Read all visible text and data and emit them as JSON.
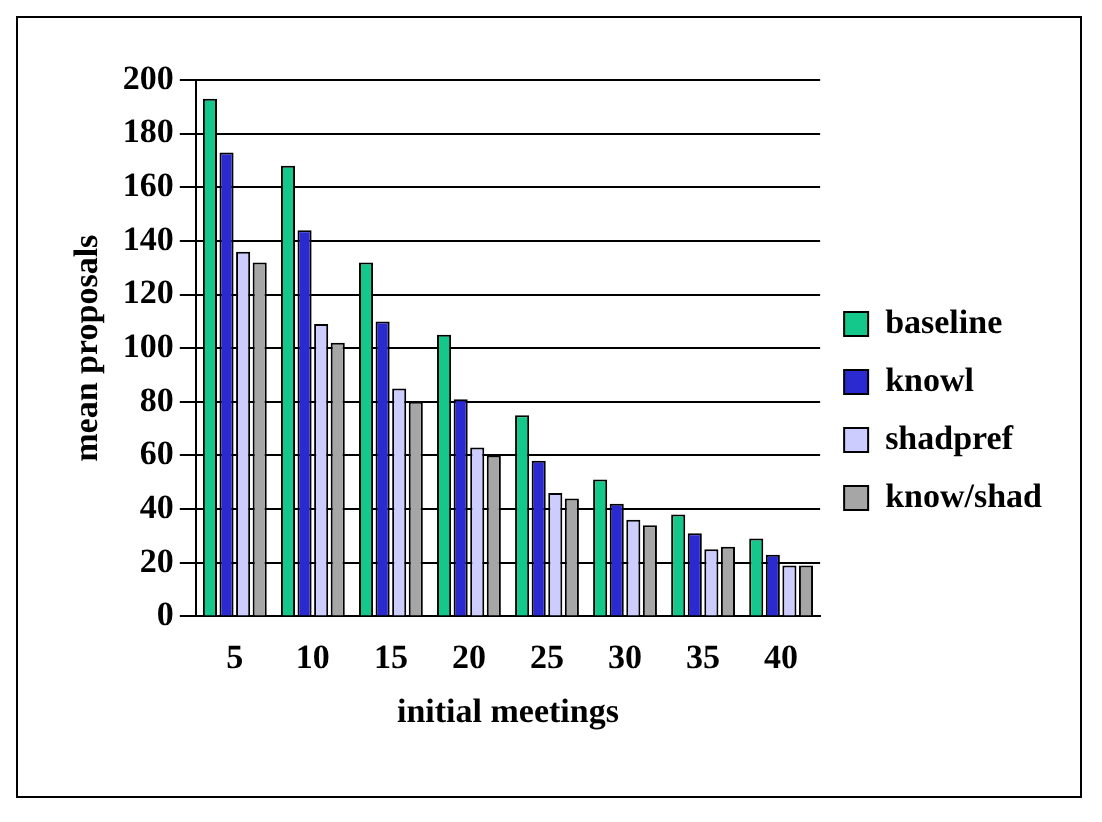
{
  "chart_data": {
    "type": "bar",
    "xlabel": "initial meetings",
    "ylabel": "mean proposals",
    "categories": [
      "5",
      "10",
      "15",
      "20",
      "25",
      "30",
      "35",
      "40"
    ],
    "series": [
      {
        "name": "baseline",
        "color": "#14c88c",
        "values": [
          193,
          168,
          132,
          105,
          75,
          51,
          38,
          29
        ]
      },
      {
        "name": "knowl",
        "color": "#2a2ad0",
        "values": [
          173,
          144,
          110,
          81,
          58,
          42,
          31,
          23
        ]
      },
      {
        "name": "shadpref",
        "color": "#ccccff",
        "values": [
          136,
          109,
          85,
          63,
          46,
          36,
          25,
          19
        ]
      },
      {
        "name": "know/shad",
        "color": "#a6a6a6",
        "values": [
          132,
          102,
          80,
          60,
          44,
          34,
          26,
          19
        ]
      }
    ],
    "ylim": [
      0,
      200
    ],
    "yticks": [
      0,
      20,
      40,
      60,
      80,
      100,
      120,
      140,
      160,
      180,
      200
    ],
    "grid": "y",
    "legend": "right"
  }
}
